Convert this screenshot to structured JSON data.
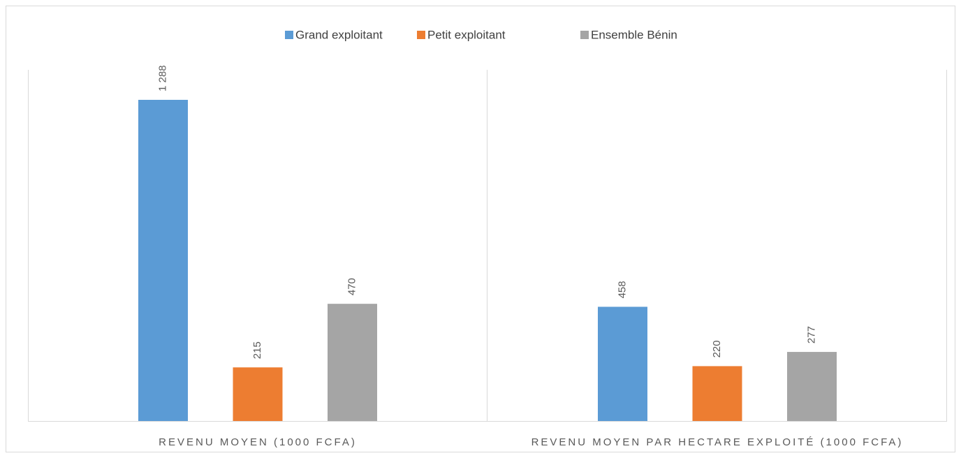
{
  "chart_data": {
    "type": "bar",
    "categories": [
      "REVENU MOYEN (1000 FCFA)",
      "REVENU MOYEN PAR HECTARE EXPLOITÉ (1000 FCFA)"
    ],
    "series": [
      {
        "name": "Grand exploitant",
        "color": "#5b9bd5",
        "values": [
          1288,
          458
        ],
        "value_labels": [
          "1 288",
          "458"
        ]
      },
      {
        "name": "Petit exploitant",
        "color": "#ed7d31",
        "values": [
          215,
          220
        ]
      },
      {
        "name": "Ensemble Bénin",
        "color": "#a5a5a5",
        "values": [
          470,
          277
        ]
      }
    ],
    "legend": "top"
  }
}
